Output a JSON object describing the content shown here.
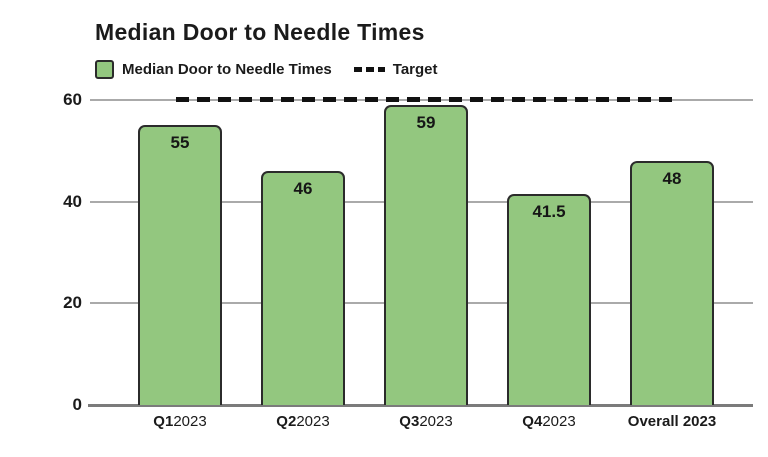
{
  "chart_data": {
    "type": "bar",
    "title": "Median Door to Needle Times",
    "legend": [
      {
        "label": "Median Door to Needle Times",
        "swatch": "bar-fill",
        "icon": "green-square"
      },
      {
        "label": "Target",
        "swatch": "dashed-line",
        "icon": "black-dashes"
      }
    ],
    "categories": [
      {
        "bold": "Q1",
        "regular": "2023"
      },
      {
        "bold": "Q2",
        "regular": "2023"
      },
      {
        "bold": "Q3",
        "regular": "2023"
      },
      {
        "bold": "Q4",
        "regular": "2023"
      },
      {
        "bold": "Overall 2023",
        "regular": ""
      }
    ],
    "series": [
      {
        "name": "Median Door to Needle Times",
        "type": "bar",
        "values": [
          55,
          46,
          59,
          41.5,
          48
        ]
      },
      {
        "name": "Target",
        "type": "dashed-line",
        "value": 60
      }
    ],
    "value_labels": [
      "55",
      "46",
      "59",
      "41.5",
      "48"
    ],
    "y_ticks": [
      0,
      20,
      40,
      60
    ],
    "ylim": [
      0,
      60
    ],
    "grid": true,
    "legend_position": "top-left",
    "colors": {
      "bar_fill": "#93C77F",
      "bar_border": "#2b2b2b",
      "target_line": "#111111",
      "grid_line": "#aaaaaa",
      "axis_line": "#7b7b7b",
      "text": "#1b1b1b",
      "background": "#ffffff"
    }
  }
}
